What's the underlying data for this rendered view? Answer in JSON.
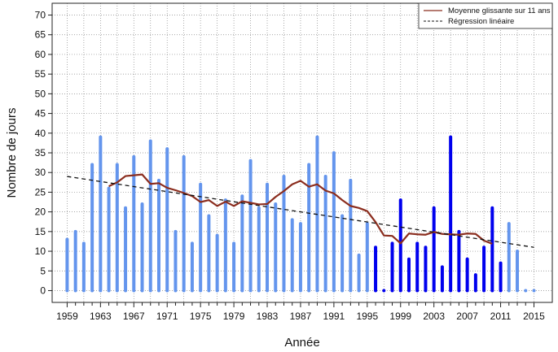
{
  "chart_data": {
    "type": "bar",
    "xlabel": "Année",
    "ylabel": "Nombre de jours",
    "ylim": [
      -3,
      73
    ],
    "xlim": [
      1957.2,
      2017.2
    ],
    "yticks": [
      0,
      5,
      10,
      15,
      20,
      25,
      30,
      35,
      40,
      45,
      50,
      55,
      60,
      65,
      70
    ],
    "xticks": [
      1959,
      1963,
      1967,
      1971,
      1975,
      1979,
      1983,
      1987,
      1991,
      1995,
      1999,
      2003,
      2007,
      2011,
      2015
    ],
    "xtick_labels": [
      "1959",
      "1963",
      "1967",
      "1971",
      "1975",
      "1979",
      "1983",
      "1987",
      "1991",
      "1995",
      "1999",
      "2003",
      "2007",
      "2011",
      "2015"
    ],
    "ytick_labels": [
      "0",
      "5",
      "10",
      "15",
      "20",
      "25",
      "30",
      "35",
      "40",
      "45",
      "50",
      "55",
      "60",
      "65",
      "70"
    ],
    "grid": true,
    "legend_position": "top-right",
    "colors": {
      "bar_light": "#6495ed",
      "bar_dark": "#0000ee",
      "moving_average": "#8b2d1e",
      "regression": "#111111",
      "grid": "#888888"
    },
    "series": [
      {
        "kind": "bars",
        "x": [
          1959,
          1960,
          1961,
          1962,
          1963,
          1964,
          1965,
          1966,
          1967,
          1968,
          1969,
          1970,
          1971,
          1972,
          1973,
          1974,
          1975,
          1976,
          1977,
          1978,
          1979,
          1980,
          1981,
          1982,
          1983,
          1984,
          1985,
          1986,
          1987,
          1988,
          1989,
          1990,
          1991,
          1992,
          1993,
          1994,
          1995,
          1996,
          1997,
          1998,
          1999,
          2000,
          2001,
          2002,
          2003,
          2004,
          2005,
          2006,
          2007,
          2008,
          2009,
          2010,
          2011,
          2012,
          2013,
          2014,
          2015
        ],
        "values": [
          13,
          15,
          12,
          32,
          39,
          26,
          32,
          21,
          34,
          22,
          38,
          28,
          36,
          15,
          34,
          12,
          27,
          19,
          14,
          23,
          12,
          24,
          33,
          21,
          27,
          22,
          29,
          18,
          17,
          32,
          39,
          29,
          35,
          19,
          28,
          9,
          17,
          11,
          0,
          12,
          23,
          8,
          12,
          11,
          21,
          6,
          39,
          15,
          8,
          4,
          11,
          21,
          7,
          17,
          10,
          0,
          0
        ],
        "shade": [
          "light",
          "light",
          "light",
          "light",
          "light",
          "light",
          "light",
          "light",
          "light",
          "light",
          "light",
          "light",
          "light",
          "light",
          "light",
          "light",
          "light",
          "light",
          "light",
          "light",
          "light",
          "light",
          "light",
          "light",
          "light",
          "light",
          "light",
          "light",
          "light",
          "light",
          "light",
          "light",
          "light",
          "light",
          "light",
          "light",
          "light",
          "dark",
          "dark",
          "dark",
          "dark",
          "dark",
          "dark",
          "dark",
          "dark",
          "dark",
          "dark",
          "dark",
          "dark",
          "dark",
          "dark",
          "dark",
          "dark",
          "light",
          "light",
          "light",
          "light"
        ]
      },
      {
        "kind": "line",
        "name": "Moyenne glissante sur 11 ans",
        "x": [
          1964,
          1965,
          1966,
          1967,
          1968,
          1969,
          1970,
          1971,
          1972,
          1973,
          1974,
          1975,
          1976,
          1977,
          1978,
          1979,
          1980,
          1981,
          1982,
          1983,
          1984,
          1985,
          1986,
          1987,
          1988,
          1989,
          1990,
          1991,
          1992,
          1993,
          1994,
          1995,
          1996,
          1997,
          1998,
          1999,
          2000,
          2001,
          2002,
          2003,
          2004,
          2005,
          2006,
          2007,
          2008,
          2009,
          2010
        ],
        "values": [
          26.5,
          27.5,
          29.1,
          29.3,
          29.5,
          27.1,
          27.3,
          26.1,
          25.5,
          24.8,
          24.0,
          22.5,
          23.0,
          21.5,
          22.6,
          21.5,
          22.7,
          22.3,
          21.9,
          22.0,
          23.8,
          25.3,
          27.0,
          27.9,
          26.4,
          27.0,
          25.4,
          24.7,
          23.0,
          21.5,
          21.0,
          20.2,
          17.4,
          14.0,
          13.9,
          12.0,
          14.5,
          14.3,
          14.2,
          14.9,
          14.4,
          14.3,
          14.2,
          14.5,
          14.4,
          12.7,
          11.9
        ]
      },
      {
        "kind": "regression",
        "name": "Régression linéaire",
        "x": [
          1959,
          2015
        ],
        "values": [
          29.0,
          11.0
        ]
      }
    ]
  }
}
